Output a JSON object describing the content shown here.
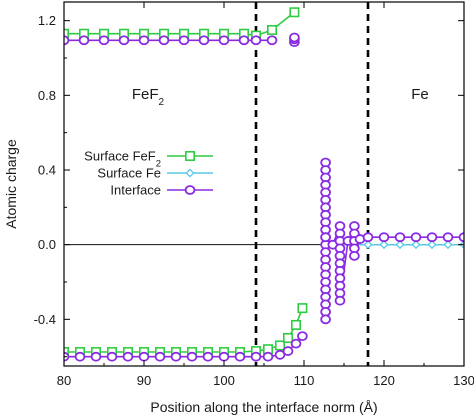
{
  "chart_data": {
    "type": "scatter",
    "title": "",
    "xlabel": "Position along the interface norm (Å)",
    "ylabel": "Atomic charge",
    "xlim": [
      80,
      130
    ],
    "ylim": [
      -0.65,
      1.3
    ],
    "xticks": [
      80,
      90,
      100,
      110,
      120,
      130
    ],
    "xtick_labels": [
      "80",
      "90",
      "100",
      "110",
      "120",
      "130"
    ],
    "yticks": [
      -0.4,
      0.0,
      0.4,
      0.8,
      1.2
    ],
    "ytick_labels": [
      "-0.4",
      "0.0",
      "0.4",
      "0.8",
      "1.2"
    ],
    "grid": false,
    "legend_position": "center-left",
    "zero_line": 0,
    "boundaries": [
      104,
      118
    ],
    "region_labels": [
      {
        "text": "FeF",
        "sub": "2",
        "x": 90.5,
        "y": 0.78
      },
      {
        "text": "Fe",
        "sub": "",
        "x": 124.5,
        "y": 0.78
      }
    ],
    "series": [
      {
        "name": "Surface FeF",
        "name_sub": "2",
        "color": "#2ecc40",
        "marker": "square",
        "lines": [
          {
            "x": [
              80.0,
              82.5,
              85.0,
              87.5,
              90.0,
              92.5,
              95.0,
              97.5,
              100.0,
              102.5,
              104.0,
              106.0,
              108.8
            ],
            "y": [
              1.13,
              1.13,
              1.13,
              1.13,
              1.13,
              1.13,
              1.13,
              1.13,
              1.13,
              1.13,
              1.12,
              1.15,
              1.245
            ]
          },
          {
            "x": [
              80.0,
              82.0,
              84.0,
              86.0,
              88.0,
              90.0,
              92.0,
              94.0,
              96.0,
              98.0,
              100.0,
              102.0,
              104.0,
              105.5,
              107.0,
              108.0,
              109.0,
              109.8
            ],
            "y": [
              -0.575,
              -0.575,
              -0.575,
              -0.575,
              -0.575,
              -0.575,
              -0.575,
              -0.575,
              -0.575,
              -0.575,
              -0.575,
              -0.575,
              -0.57,
              -0.56,
              -0.54,
              -0.5,
              -0.43,
              -0.34
            ]
          }
        ]
      },
      {
        "name": "Surface Fe",
        "name_sub": "",
        "color": "#5bc8e8",
        "marker": "diamond",
        "lines": [
          {
            "x": [
              112.7,
              114.5,
              116.0,
              118.0,
              120.0,
              122.0,
              124.0,
              126.0,
              128.0,
              130.0
            ],
            "y": [
              0.0,
              0.0,
              0.0,
              0.0,
              0.0,
              0.0,
              0.0,
              0.0,
              0.0,
              0.0
            ]
          }
        ]
      },
      {
        "name": "Interface",
        "name_sub": "",
        "color": "#8a2be2",
        "marker": "circle",
        "lines": [
          {
            "x": [
              80.0,
              82.5,
              85.0,
              87.5,
              90.0,
              92.5,
              95.0,
              97.5,
              100.0,
              102.5,
              104.0,
              106.0
            ],
            "y": [
              1.095,
              1.095,
              1.095,
              1.095,
              1.095,
              1.095,
              1.095,
              1.095,
              1.095,
              1.095,
              1.095,
              1.095
            ]
          },
          {
            "x": [
              108.8,
              108.8,
              108.8
            ],
            "y": [
              1.085,
              1.1,
              1.11
            ]
          },
          {
            "x": [
              80.0,
              82.0,
              84.0,
              86.0,
              88.0,
              90.0,
              92.0,
              94.0,
              96.0,
              98.0,
              100.0,
              102.0,
              104.0,
              105.5,
              107.0,
              108.0,
              109.0,
              109.8
            ],
            "y": [
              -0.6,
              -0.6,
              -0.6,
              -0.6,
              -0.6,
              -0.6,
              -0.6,
              -0.6,
              -0.6,
              -0.6,
              -0.6,
              -0.6,
              -0.6,
              -0.6,
              -0.59,
              -0.57,
              -0.53,
              -0.49
            ]
          },
          {
            "x": [
              112.7,
              112.7,
              112.7,
              112.7,
              112.7,
              112.7,
              112.7,
              112.7,
              112.7,
              112.7,
              112.7,
              112.7,
              112.7,
              112.7,
              112.7,
              112.7,
              112.7,
              112.7,
              112.7,
              112.7,
              112.7,
              112.7
            ],
            "y": [
              0.44,
              0.4,
              0.36,
              0.32,
              0.28,
              0.24,
              0.2,
              0.16,
              0.12,
              0.08,
              0.04,
              0.0,
              -0.04,
              -0.08,
              -0.12,
              -0.16,
              -0.2,
              -0.24,
              -0.28,
              -0.32,
              -0.36,
              -0.4
            ]
          },
          {
            "x": [
              112.7,
              113.6,
              114.5,
              114.5,
              114.5,
              114.5,
              114.5,
              114.5,
              114.5,
              114.5,
              114.5,
              114.5,
              114.5,
              115.5,
              116.3,
              116.3,
              116.3,
              116.3,
              116.3,
              117.0,
              118.0,
              120.0,
              122.0,
              124.0,
              126.0,
              128.0,
              130.0
            ],
            "y": [
              0.04,
              0.0,
              0.1,
              0.06,
              0.02,
              -0.02,
              -0.06,
              -0.1,
              -0.14,
              -0.18,
              -0.22,
              -0.26,
              -0.3,
              0.02,
              0.1,
              0.06,
              0.02,
              -0.02,
              -0.06,
              0.03,
              0.04,
              0.04,
              0.04,
              0.04,
              0.04,
              0.04,
              0.04
            ]
          }
        ]
      }
    ]
  }
}
